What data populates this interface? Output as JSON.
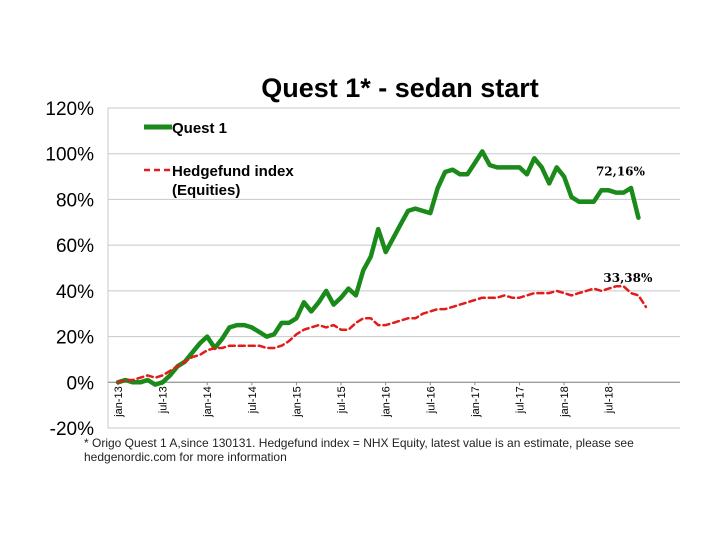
{
  "chart_data": {
    "type": "line",
    "title": "Quest 1* - sedan start",
    "yticks": [
      "-20%",
      "0%",
      "20%",
      "40%",
      "60%",
      "80%",
      "100%",
      "120%"
    ],
    "ylim": [
      -20,
      120
    ],
    "xticks": [
      "jan-13",
      "jul-13",
      "jan-14",
      "jul-14",
      "jan-15",
      "jul-15",
      "jan-16",
      "jul-16",
      "jan-17",
      "jul-17",
      "jan-18",
      "jul-18"
    ],
    "x_unit": "month index from jan-13",
    "xlim": [
      0,
      73
    ],
    "grid": "horizontal",
    "legend_position": "top-left",
    "series": [
      {
        "name": "Quest 1",
        "color": "#1a8a1a",
        "style": "solid",
        "end_label": "72,16%",
        "values": [
          0,
          1,
          0,
          0,
          1,
          -1,
          0,
          3,
          7,
          9,
          13,
          17,
          20,
          15,
          19,
          24,
          25,
          25,
          24,
          22,
          20,
          21,
          26,
          26,
          28,
          35,
          31,
          35,
          40,
          34,
          37,
          41,
          38,
          49,
          55,
          67,
          57,
          63,
          69,
          75,
          76,
          75,
          74,
          85,
          92,
          93,
          91,
          91,
          96,
          101,
          95,
          94,
          94,
          94,
          94,
          91,
          98,
          94,
          87,
          94,
          90,
          81,
          79,
          79,
          79,
          84,
          84,
          83,
          83,
          85,
          72
        ]
      },
      {
        "name": "Hedgefund index (Equities)",
        "color": "#e31b1b",
        "style": "dashed",
        "end_label": "33,38%",
        "values": [
          0,
          1,
          1,
          2,
          3,
          2,
          3,
          5,
          7,
          9,
          11,
          12,
          14,
          15,
          15,
          16,
          16,
          16,
          16,
          16,
          15,
          15,
          16,
          18,
          21,
          23,
          24,
          25,
          24,
          25,
          23,
          23,
          26,
          28,
          28,
          25,
          25,
          26,
          27,
          28,
          28,
          30,
          31,
          32,
          32,
          33,
          34,
          35,
          36,
          37,
          37,
          37,
          38,
          37,
          37,
          38,
          39,
          39,
          39,
          40,
          39,
          38,
          39,
          40,
          41,
          40,
          41,
          42,
          42,
          39,
          38,
          33
        ]
      }
    ]
  },
  "footnote": "* Origo Quest 1 A,since 130131. Hedgefund index = NHX Equity, latest value is an estimate, please see hedgenordic.com for more information"
}
